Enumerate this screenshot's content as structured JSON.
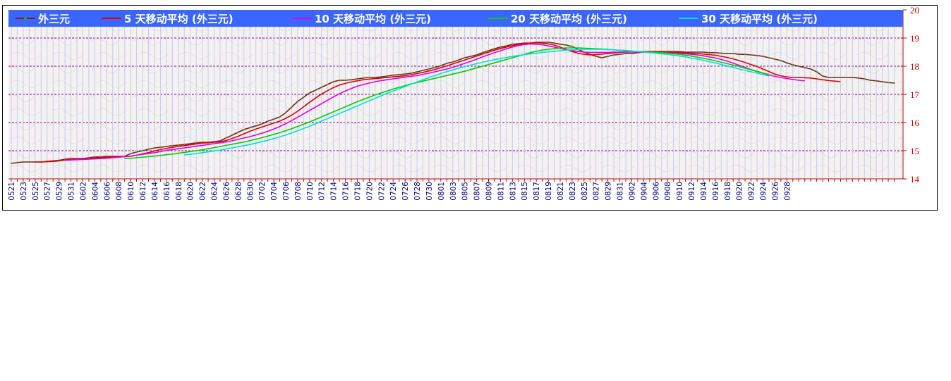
{
  "chart_data": {
    "type": "line",
    "ylim": [
      14,
      20
    ],
    "y_ticks": [
      "14",
      "15",
      "16",
      "17",
      "18",
      "19",
      "20"
    ],
    "x_tick_labels": [
      "0521",
      "0523",
      "0525",
      "0527",
      "0529",
      "0531",
      "0602",
      "0604",
      "0606",
      "0608",
      "0610",
      "0612",
      "0614",
      "0616",
      "0618",
      "0620",
      "0622",
      "0624",
      "0626",
      "0628",
      "0630",
      "0702",
      "0704",
      "0706",
      "0708",
      "0710",
      "0712",
      "0714",
      "0716",
      "0718",
      "0720",
      "0722",
      "0724",
      "0726",
      "0728",
      "0730",
      "0801",
      "0803",
      "0805",
      "0807",
      "0809",
      "0811",
      "0813",
      "0815",
      "0817",
      "0819",
      "0821",
      "0823",
      "0825",
      "0827",
      "0829",
      "0831",
      "0902",
      "0904",
      "0906",
      "0908",
      "0910",
      "0912",
      "0914",
      "0916",
      "0918",
      "0920",
      "0922",
      "0924",
      "0926",
      "0928"
    ],
    "grid": "horizontal dashed",
    "legend_position": "top",
    "series": [
      {
        "name": "外三元",
        "color": "#8b1a1a",
        "marker_color": "#2a9d2a",
        "start": 0,
        "values": [
          14.55,
          14.58,
          14.6,
          14.6,
          14.6,
          14.6,
          14.62,
          14.64,
          14.66,
          14.7,
          14.72,
          14.72,
          14.72,
          14.75,
          14.78,
          14.78,
          14.8,
          14.8,
          14.8,
          14.8,
          14.9,
          14.95,
          15.0,
          15.05,
          15.1,
          15.12,
          15.15,
          15.18,
          15.2,
          15.22,
          15.25,
          15.28,
          15.3,
          15.3,
          15.32,
          15.35,
          15.45,
          15.55,
          15.65,
          15.75,
          15.82,
          15.88,
          15.95,
          16.05,
          16.12,
          16.2,
          16.35,
          16.55,
          16.75,
          16.9,
          17.05,
          17.15,
          17.25,
          17.35,
          17.45,
          17.5,
          17.5,
          17.52,
          17.55,
          17.58,
          17.6,
          17.6,
          17.62,
          17.65,
          17.68,
          17.7,
          17.72,
          17.75,
          17.8,
          17.85,
          17.9,
          17.95,
          18.02,
          18.1,
          18.15,
          18.22,
          18.3,
          18.35,
          18.4,
          18.48,
          18.55,
          18.62,
          18.68,
          18.72,
          18.78,
          18.8,
          18.82,
          18.82,
          18.85,
          18.85,
          18.85,
          18.82,
          18.78,
          18.75,
          18.7,
          18.6,
          18.5,
          18.42,
          18.35,
          18.3,
          18.35,
          18.4,
          18.42,
          18.45,
          18.45,
          18.48,
          18.5,
          18.52,
          18.52,
          18.52,
          18.52,
          18.52,
          18.52,
          18.5,
          18.5,
          18.5,
          18.5,
          18.48,
          18.48,
          18.46,
          18.45,
          18.45,
          18.42,
          18.42,
          18.4,
          18.38,
          18.35,
          18.3,
          18.25,
          18.2,
          18.12,
          18.05,
          18.0,
          17.95,
          17.9,
          17.8,
          17.65,
          17.6,
          17.6,
          17.6,
          17.6,
          17.6,
          17.58,
          17.55,
          17.5,
          17.48,
          17.45,
          17.42,
          17.4
        ]
      },
      {
        "name": "5 天移动平均 (外三元)",
        "color": "#e00000",
        "start": 4,
        "values": [
          14.6,
          14.6,
          14.61,
          14.62,
          14.64,
          14.67,
          14.69,
          14.7,
          14.71,
          14.72,
          14.74,
          14.75,
          14.77,
          14.78,
          14.79,
          14.79,
          14.8,
          14.84,
          14.89,
          14.93,
          14.99,
          15.04,
          15.08,
          15.12,
          15.15,
          15.18,
          15.21,
          15.24,
          15.27,
          15.28,
          15.3,
          15.32,
          15.36,
          15.43,
          15.51,
          15.6,
          15.69,
          15.77,
          15.84,
          15.91,
          15.98,
          16.05,
          16.15,
          16.26,
          16.4,
          16.56,
          16.72,
          16.87,
          17.01,
          17.13,
          17.24,
          17.33,
          17.39,
          17.44,
          17.48,
          17.52,
          17.54,
          17.56,
          17.58,
          17.6,
          17.62,
          17.64,
          17.66,
          17.7,
          17.74,
          17.78,
          17.83,
          17.88,
          17.95,
          18.01,
          18.08,
          18.15,
          18.22,
          18.29,
          18.36,
          18.43,
          18.5,
          18.57,
          18.63,
          18.68,
          18.73,
          18.77,
          18.8,
          18.82,
          18.83,
          18.82,
          18.79,
          18.75,
          18.68,
          18.6,
          18.52,
          18.46,
          18.42,
          18.4,
          18.41,
          18.43,
          18.45,
          18.47,
          18.49,
          18.5,
          18.51,
          18.52,
          18.52,
          18.52,
          18.51,
          18.51,
          18.5,
          18.49,
          18.48,
          18.47,
          18.46,
          18.45,
          18.43,
          18.41,
          18.39,
          18.35,
          18.31,
          18.26,
          18.2,
          18.13,
          18.06,
          17.99,
          17.9,
          17.81,
          17.72,
          17.66,
          17.62,
          17.6,
          17.6,
          17.59,
          17.58,
          17.55,
          17.52,
          17.49,
          17.47,
          17.45
        ]
      },
      {
        "name": "10 天移动平均 (外三元)",
        "color": "#e000e0",
        "start": 9,
        "values": [
          14.66,
          14.67,
          14.68,
          14.69,
          14.7,
          14.71,
          14.72,
          14.73,
          14.75,
          14.77,
          14.79,
          14.81,
          14.84,
          14.87,
          14.9,
          14.93,
          14.97,
          15.01,
          15.04,
          15.07,
          15.1,
          15.13,
          15.16,
          15.19,
          15.22,
          15.25,
          15.28,
          15.31,
          15.35,
          15.4,
          15.45,
          15.5,
          15.56,
          15.62,
          15.69,
          15.77,
          15.86,
          15.96,
          16.07,
          16.19,
          16.31,
          16.43,
          16.55,
          16.67,
          16.79,
          16.91,
          17.02,
          17.12,
          17.21,
          17.29,
          17.35,
          17.4,
          17.45,
          17.49,
          17.52,
          17.55,
          17.58,
          17.61,
          17.64,
          17.67,
          17.71,
          17.75,
          17.8,
          17.85,
          17.9,
          17.96,
          18.03,
          18.1,
          18.17,
          18.25,
          18.33,
          18.41,
          18.48,
          18.55,
          18.62,
          18.68,
          18.73,
          18.77,
          18.79,
          18.78,
          18.76,
          18.72,
          18.68,
          18.63,
          18.59,
          18.55,
          18.52,
          18.5,
          18.49,
          18.49,
          18.49,
          18.49,
          18.5,
          18.5,
          18.5,
          18.5,
          18.5,
          18.5,
          18.49,
          18.49,
          18.48,
          18.47,
          18.46,
          18.45,
          18.44,
          18.42,
          18.4,
          18.37,
          18.33,
          18.29,
          18.24,
          18.18,
          18.11,
          18.03,
          17.96,
          17.88,
          17.81,
          17.75,
          17.69,
          17.64,
          17.6,
          17.56,
          17.53,
          17.5,
          17.48
        ]
      },
      {
        "name": "20 天移动平均 (外三元)",
        "color": "#00d000",
        "start": 19,
        "values": [
          14.72,
          14.73,
          14.75,
          14.77,
          14.79,
          14.81,
          14.83,
          14.86,
          14.88,
          14.91,
          14.94,
          14.97,
          15.0,
          15.03,
          15.07,
          15.11,
          15.15,
          15.19,
          15.23,
          15.27,
          15.31,
          15.36,
          15.41,
          15.46,
          15.52,
          15.58,
          15.64,
          15.71,
          15.78,
          15.86,
          15.94,
          16.02,
          16.11,
          16.2,
          16.29,
          16.38,
          16.47,
          16.56,
          16.65,
          16.74,
          16.82,
          16.9,
          16.98,
          17.05,
          17.12,
          17.19,
          17.25,
          17.31,
          17.37,
          17.42,
          17.47,
          17.52,
          17.57,
          17.62,
          17.67,
          17.72,
          17.77,
          17.82,
          17.88,
          17.94,
          18.0,
          18.06,
          18.12,
          18.18,
          18.24,
          18.3,
          18.36,
          18.42,
          18.48,
          18.53,
          18.57,
          18.6,
          18.62,
          18.64,
          18.65,
          18.65,
          18.65,
          18.64,
          18.63,
          18.62,
          18.61,
          18.6,
          18.58,
          18.56,
          18.54,
          18.53,
          18.52,
          18.51,
          18.5,
          18.49,
          18.48,
          18.46,
          18.44,
          18.42,
          18.39,
          18.36,
          18.32,
          18.28,
          18.24,
          18.19,
          18.14,
          18.09,
          18.04,
          17.99,
          17.93,
          17.87,
          17.82,
          17.76,
          17.71
        ]
      },
      {
        "name": "30 天移动平均 (外三元)",
        "color": "#00e0e0",
        "start": 29,
        "values": [
          14.85,
          14.87,
          14.9,
          14.93,
          14.96,
          14.99,
          15.02,
          15.06,
          15.1,
          15.14,
          15.18,
          15.22,
          15.27,
          15.32,
          15.37,
          15.43,
          15.49,
          15.56,
          15.63,
          15.71,
          15.79,
          15.87,
          15.96,
          16.05,
          16.14,
          16.23,
          16.32,
          16.41,
          16.5,
          16.59,
          16.68,
          16.77,
          16.86,
          16.95,
          17.04,
          17.12,
          17.2,
          17.28,
          17.36,
          17.44,
          17.52,
          17.6,
          17.67,
          17.74,
          17.81,
          17.87,
          17.93,
          17.99,
          18.04,
          18.09,
          18.14,
          18.19,
          18.23,
          18.27,
          18.31,
          18.35,
          18.38,
          18.41,
          18.44,
          18.46,
          18.49,
          18.51,
          18.53,
          18.55,
          18.57,
          18.58,
          18.59,
          18.6,
          18.6,
          18.6,
          18.6,
          18.59,
          18.58,
          18.57,
          18.56,
          18.54,
          18.52,
          18.5,
          18.48,
          18.46,
          18.44,
          18.42,
          18.39,
          18.36,
          18.33,
          18.29,
          18.25,
          18.21,
          18.16,
          18.11,
          18.06,
          18.01,
          17.96,
          17.9,
          17.85,
          17.8,
          17.75,
          17.7,
          17.65
        ]
      }
    ]
  }
}
